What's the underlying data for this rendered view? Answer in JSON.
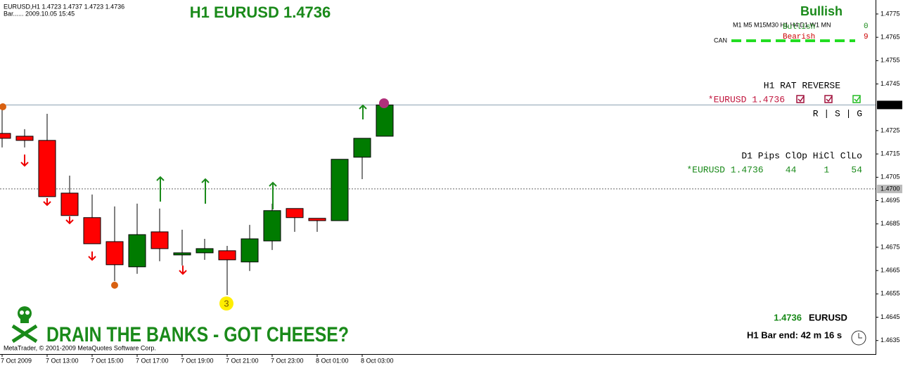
{
  "chart_data": {
    "type": "candlestick",
    "title": "H1 EURUSD 1.4736",
    "header_lines": [
      "EURUSD,H1  1.4723 1.4737 1.4723 1.4736",
      "Bar...... 2009.10.05 15:45"
    ],
    "categories": [
      "7 Oct 2009",
      null,
      "7 Oct 13:00",
      null,
      "7 Oct 15:00",
      null,
      "7 Oct 17:00",
      null,
      "7 Oct 19:00",
      null,
      "7 Oct 21:00",
      null,
      "7 Oct 23:00",
      null,
      "8 Oct 01:00",
      null,
      "8 Oct 03:00",
      null
    ],
    "open": [
      1.47238,
      1.47226,
      1.47208,
      1.46982,
      1.46877,
      1.46774,
      1.46666,
      1.46816,
      1.46717,
      1.46726,
      1.46735,
      1.46687,
      1.46777,
      1.46916,
      1.46874,
      1.46864,
      1.47136,
      1.47226
    ],
    "high": [
      1.47358,
      1.47256,
      1.47322,
      1.47057,
      1.46976,
      1.46925,
      1.46937,
      1.46916,
      1.46825,
      1.46786,
      1.46756,
      1.46846,
      1.46937,
      1.46916,
      1.46874,
      1.47127,
      1.47217,
      1.47373
    ],
    "low": [
      1.47178,
      1.47178,
      1.46967,
      1.46886,
      1.46765,
      1.46605,
      1.46636,
      1.4669,
      1.46672,
      1.46696,
      1.46545,
      1.46648,
      1.46738,
      1.46816,
      1.46816,
      1.46864,
      1.47042,
      1.47226
    ],
    "close": [
      1.47217,
      1.47208,
      1.46967,
      1.46886,
      1.46765,
      1.46675,
      1.46804,
      1.46744,
      1.46726,
      1.46744,
      1.46696,
      1.46786,
      1.46907,
      1.46877,
      1.46864,
      1.47127,
      1.47217,
      1.4736
    ],
    "up_color": "#007b00",
    "down_color": "#ff0000",
    "ylim": [
      1.46292,
      1.4781
    ],
    "yticks": [
      1.4775,
      1.4765,
      1.4755,
      1.4745,
      1.4725,
      1.4715,
      1.4705,
      1.4695,
      1.4685,
      1.4675,
      1.4665,
      1.4655,
      1.4645,
      1.4635
    ],
    "price_line": 1.4736,
    "level_line": {
      "value": 1.47,
      "label": "1.4700"
    },
    "marker_label": "3"
  },
  "overlay": {
    "bias": "Bullish",
    "timeframes": "M1 M5 M15M30 H1 H4 D1 W1 MN",
    "bullish": {
      "label": "Bullish",
      "count": "0"
    },
    "bearish": {
      "label": "Bearish",
      "count": "9"
    },
    "can": "CAN",
    "rat_title": "H1 RAT REVERSE",
    "rat_symbol": "*EURUSD 1.4736",
    "rat_columns": "R | S | G",
    "d1_header": "D1 Pips ClOp HiCl ClLo",
    "d1_row": "*EURUSD 1.4736    44     1    54",
    "bottom_price": "1.4736",
    "bottom_symbol": "EURUSD",
    "bar_end": "H1 Bar end: 42 m 16 s",
    "slogan": "DRAIN THE BANKS - GOT CHEESE?",
    "copyright": "MetaTrader, © 2001-2009 MetaQuotes Software Corp."
  }
}
